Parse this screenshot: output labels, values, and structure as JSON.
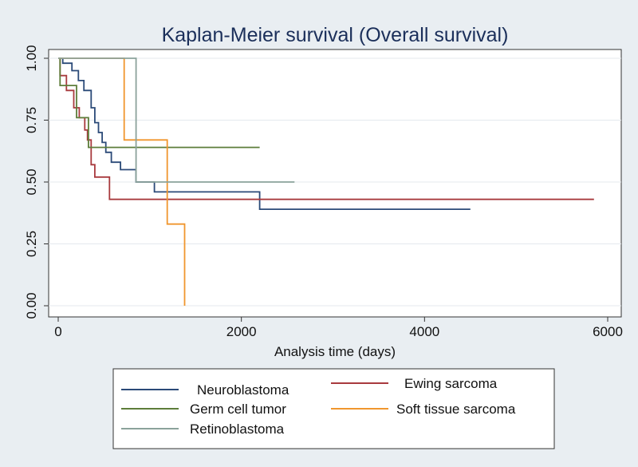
{
  "chart_data": {
    "type": "line",
    "title": "Kaplan-Meier survival (Overall survival)",
    "xlabel": "Analysis time (days)",
    "ylabel": "",
    "xlim": [
      0,
      6000
    ],
    "ylim": [
      0,
      1
    ],
    "x_ticks": [
      0,
      2000,
      4000,
      6000
    ],
    "x_tick_labels": [
      "0",
      "2000",
      "4000",
      "6000"
    ],
    "y_ticks": [
      0,
      0.25,
      0.5,
      0.75,
      1
    ],
    "y_tick_labels": [
      "0.00",
      "0.25",
      "0.50",
      "0.75",
      "1.00"
    ],
    "grid": true,
    "legend_position": "bottom",
    "series": [
      {
        "name": "Neuroblastoma",
        "color": "#2b4a78",
        "x": [
          0,
          50,
          150,
          220,
          280,
          360,
          400,
          440,
          480,
          520,
          580,
          680,
          850,
          1050,
          2200,
          4500
        ],
        "y": [
          1.0,
          0.98,
          0.95,
          0.91,
          0.87,
          0.8,
          0.74,
          0.7,
          0.66,
          0.62,
          0.58,
          0.55,
          0.5,
          0.46,
          0.39,
          0.39
        ]
      },
      {
        "name": "Ewing sarcoma",
        "color": "#a83a3e",
        "x": [
          0,
          20,
          90,
          170,
          230,
          290,
          320,
          360,
          400,
          560,
          5850
        ],
        "y": [
          1.0,
          0.93,
          0.87,
          0.8,
          0.76,
          0.71,
          0.67,
          0.57,
          0.52,
          0.43,
          0.43
        ]
      },
      {
        "name": "Germ cell tumor",
        "color": "#5d7d3a",
        "x": [
          0,
          20,
          200,
          330,
          2200
        ],
        "y": [
          1.0,
          0.89,
          0.76,
          0.64,
          0.64
        ]
      },
      {
        "name": "Soft tissue sarcoma",
        "color": "#f0962e",
        "x": [
          0,
          720,
          1190,
          1380
        ],
        "y": [
          1.0,
          0.67,
          0.33,
          0.0
        ]
      },
      {
        "name": "Retinoblastoma",
        "color": "#8ba29b",
        "x": [
          0,
          850,
          2580
        ],
        "y": [
          1.0,
          0.5,
          0.5
        ]
      }
    ]
  }
}
